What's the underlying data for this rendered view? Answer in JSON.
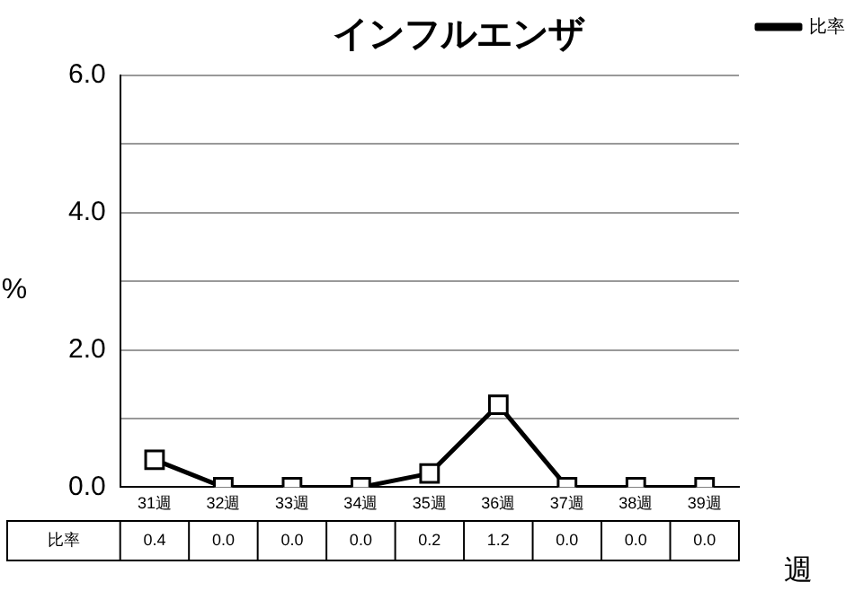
{
  "chart_data": {
    "type": "line",
    "title": "インフルエンザ",
    "xlabel": "週",
    "ylabel": "%",
    "categories": [
      "31週",
      "32週",
      "33週",
      "34週",
      "35週",
      "36週",
      "37週",
      "38週",
      "39週"
    ],
    "series": [
      {
        "name": "比率",
        "color": "#000000",
        "values": [
          0.4,
          0.0,
          0.0,
          0.0,
          0.2,
          1.2,
          0.0,
          0.0,
          0.0
        ],
        "value_labels": [
          "0.4",
          "0.0",
          "0.0",
          "0.0",
          "0.2",
          "1.2",
          "0.0",
          "0.0",
          "0.0"
        ]
      }
    ],
    "ylim": [
      0,
      6
    ],
    "yticks": [
      {
        "value": 0,
        "label": "0.0"
      },
      {
        "value": 1,
        "label": null
      },
      {
        "value": 2,
        "label": "2.0"
      },
      {
        "value": 3,
        "label": null
      },
      {
        "value": 4,
        "label": "4.0"
      },
      {
        "value": 5,
        "label": null
      },
      {
        "value": 6,
        "label": "6.0"
      }
    ],
    "grid": "y",
    "legend": "right",
    "marker": "square",
    "line_style": "solid"
  }
}
